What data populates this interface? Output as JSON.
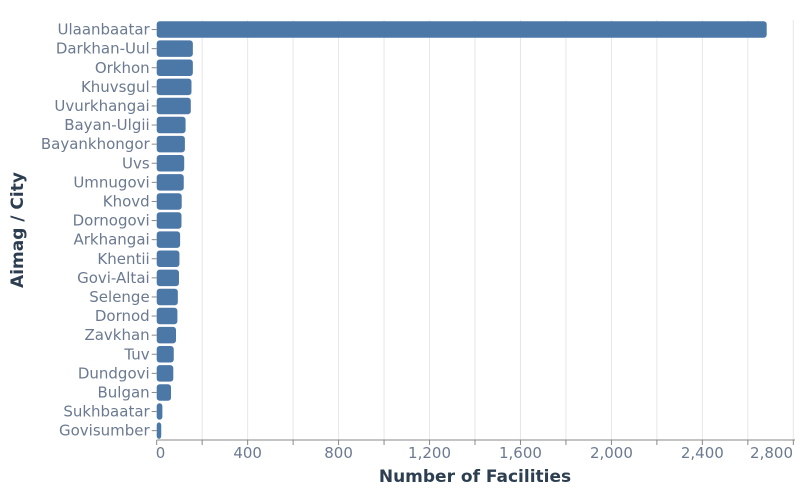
{
  "chart_data": {
    "type": "bar",
    "orientation": "horizontal",
    "title": "",
    "xlabel": "Number of Facilities",
    "ylabel": "Aimag / City",
    "xlim": [
      0,
      2810
    ],
    "x_ticks": [
      0,
      400,
      800,
      1200,
      1600,
      2000,
      2400,
      2800
    ],
    "x_tick_labels": [
      "0",
      "400",
      "800",
      "1,200",
      "1,600",
      "2,000",
      "2,400",
      "2,800"
    ],
    "grid": "vertical, every 200",
    "bar_color": "#4c78a8",
    "categories": [
      "Ulaanbaatar",
      "Darkhan-Uul",
      "Orkhon",
      "Khuvsgul",
      "Uvurkhangai",
      "Bayan-Ulgii",
      "Bayankhongor",
      "Uvs",
      "Umnugovi",
      "Khovd",
      "Dornogovi",
      "Arkhangai",
      "Khentii",
      "Govi-Altai",
      "Selenge",
      "Dornod",
      "Zavkhan",
      "Tuv",
      "Dundgovi",
      "Bulgan",
      "Sukhbaatar",
      "Govisumber"
    ],
    "values": [
      2683,
      159,
      159,
      153,
      150,
      127,
      124,
      121,
      119,
      110,
      109,
      103,
      100,
      98,
      93,
      91,
      85,
      75,
      73,
      63,
      25,
      20
    ]
  }
}
